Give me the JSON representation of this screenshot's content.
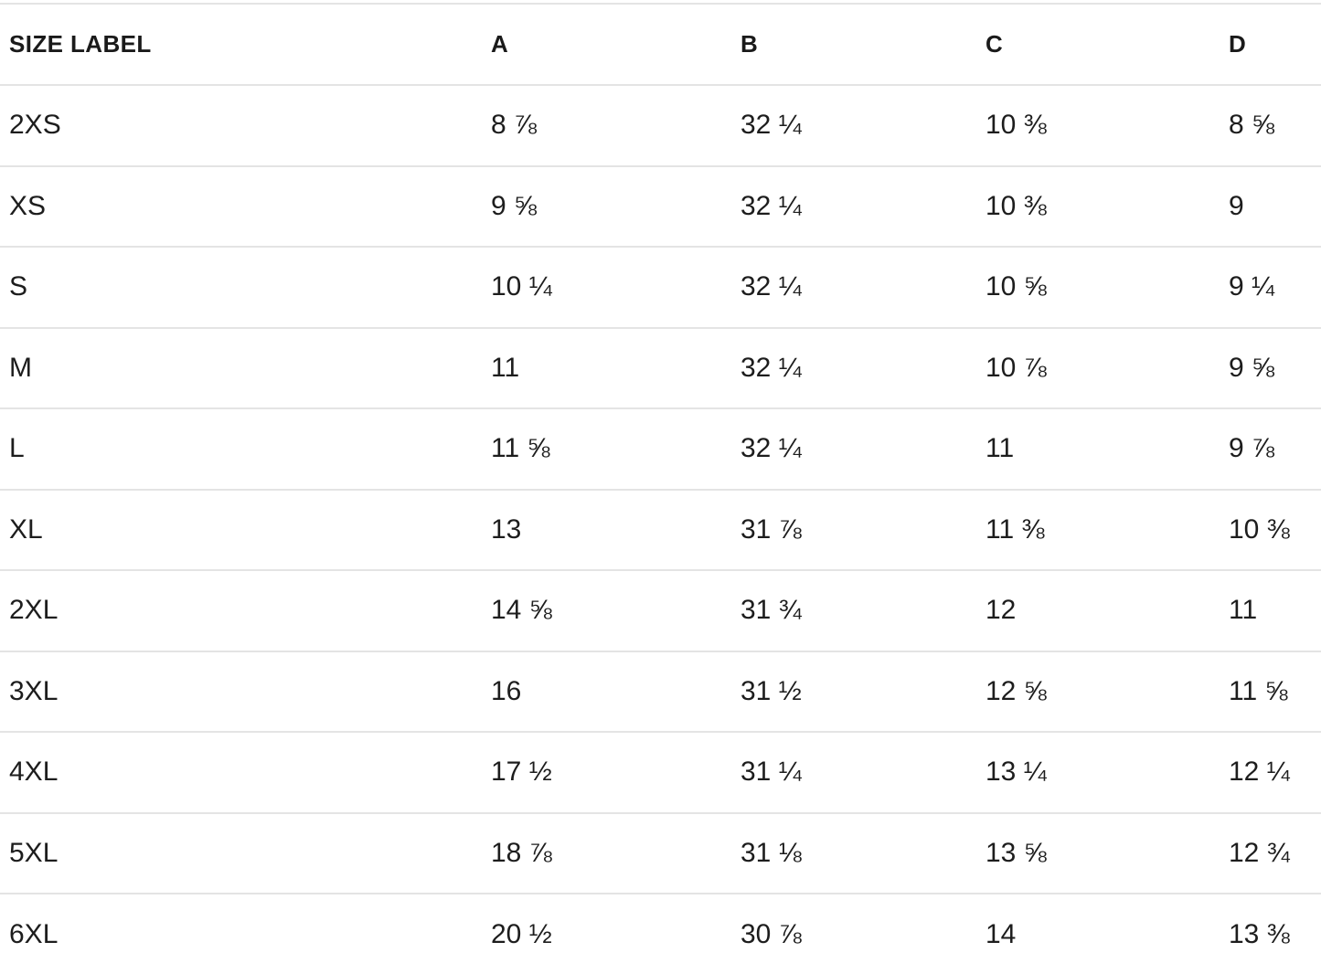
{
  "size_chart": {
    "columns": [
      "SIZE LABEL",
      "A",
      "B",
      "C",
      "D"
    ],
    "rows": [
      {
        "label": "2XS",
        "values": [
          "8 ⅞",
          "32 ¼",
          "10 ⅜",
          "8 ⅝"
        ]
      },
      {
        "label": "XS",
        "values": [
          "9 ⅝",
          "32 ¼",
          "10 ⅜",
          "9"
        ]
      },
      {
        "label": "S",
        "values": [
          "10 ¼",
          "32 ¼",
          "10 ⅝",
          "9 ¼"
        ]
      },
      {
        "label": "M",
        "values": [
          "11",
          "32 ¼",
          "10 ⅞",
          "9 ⅝"
        ]
      },
      {
        "label": "L",
        "values": [
          "11 ⅝",
          "32 ¼",
          "11",
          "9 ⅞"
        ]
      },
      {
        "label": "XL",
        "values": [
          "13",
          "31 ⅞",
          "11 ⅜",
          "10 ⅜"
        ]
      },
      {
        "label": "2XL",
        "values": [
          "14 ⅝",
          "31 ¾",
          "12",
          "11"
        ]
      },
      {
        "label": "3XL",
        "values": [
          "16",
          "31 ½",
          "12 ⅝",
          "11 ⅝"
        ]
      },
      {
        "label": "4XL",
        "values": [
          "17 ½",
          "31 ¼",
          "13 ¼",
          "12 ¼"
        ]
      },
      {
        "label": "5XL",
        "values": [
          "18 ⅞",
          "31 ⅛",
          "13 ⅝",
          "12 ¾"
        ]
      },
      {
        "label": "6XL",
        "values": [
          "20 ½",
          "30 ⅞",
          "14",
          "13 ⅜"
        ]
      }
    ]
  }
}
